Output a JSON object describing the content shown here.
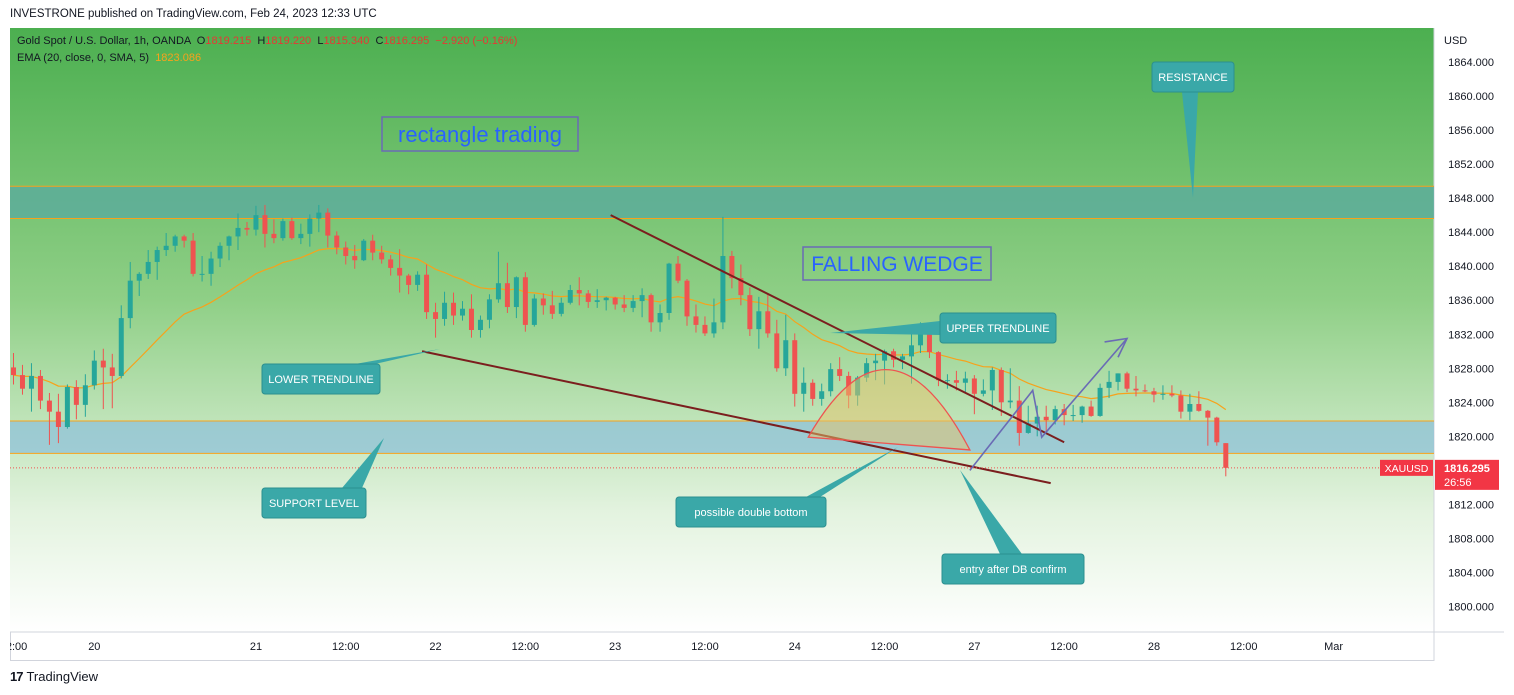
{
  "header": {
    "published_line": "INVESTRONE published on TradingView.com, Feb 24, 2023 12:33 UTC"
  },
  "footer": {
    "logo_text": "TradingView"
  },
  "legend": {
    "symbol_line": "Gold Spot / U.S. Dollar, 1h, OANDA",
    "o_label": "O",
    "o_value": "1819.215",
    "h_label": "H",
    "h_value": "1819.220",
    "l_label": "L",
    "l_value": "1815.340",
    "c_label": "C",
    "c_value": "1816.295",
    "change": "−2.920 (−0.16%)",
    "ema_label": "EMA (20, close, 0, SMA, 5)",
    "ema_value": "1823.086"
  },
  "colors": {
    "up": "#26a69a",
    "down": "#ef5350",
    "ema": "#f7a21b",
    "trendline": "#7b1e1e",
    "callout": "#3aa8a8",
    "price_tag": "#f23645"
  },
  "chart_data": {
    "type": "candlestick",
    "title": "Gold Spot / U.S. Dollar, 1h, OANDA",
    "currency": "USD",
    "ylim": [
      1797.0,
      1868.0
    ],
    "y_ticks": [
      1800,
      1804,
      1808,
      1812,
      1816,
      1820,
      1824,
      1828,
      1832,
      1836,
      1840,
      1844,
      1848,
      1852,
      1856,
      1860,
      1864
    ],
    "y_tick_labels": [
      "1800.000",
      "1804.000",
      "1808.000",
      "1812.000",
      "1816.000",
      "1820.000",
      "1824.000",
      "1828.000",
      "1832.000",
      "1836.000",
      "1840.000",
      "1844.000",
      "1848.000",
      "1852.000",
      "1856.000",
      "1860.000",
      "1864.000"
    ],
    "x_ticks": [
      "12:00",
      "20",
      "21",
      "12:00",
      "22",
      "12:00",
      "23",
      "12:00",
      "24",
      "12:00",
      "27",
      "12:00",
      "28",
      "12:00",
      "Mar"
    ],
    "x_tick_bar": [
      0,
      9,
      27,
      37,
      47,
      57,
      67,
      77,
      87,
      97,
      107,
      117,
      127,
      137,
      147
    ],
    "current_price": 1816.295,
    "price_tag_label": "XAUUSD",
    "price_tag_value": "1816.295",
    "countdown": "26:56",
    "ema_period": 20,
    "candles": [
      [
        1828.1,
        1829.8,
        1826.1,
        1827.2
      ],
      [
        1827.2,
        1828.4,
        1824.9,
        1825.6
      ],
      [
        1825.6,
        1828.6,
        1822.9,
        1827.1
      ],
      [
        1827.1,
        1827.8,
        1823.2,
        1824.2
      ],
      [
        1824.2,
        1825.1,
        1819.0,
        1822.9
      ],
      [
        1822.9,
        1825.0,
        1819.2,
        1821.1
      ],
      [
        1821.1,
        1826.1,
        1820.9,
        1825.8
      ],
      [
        1825.8,
        1826.6,
        1822.0,
        1823.7
      ],
      [
        1823.7,
        1827.3,
        1822.3,
        1826.0
      ],
      [
        1826.0,
        1830.1,
        1825.5,
        1828.9
      ],
      [
        1828.9,
        1830.3,
        1823.2,
        1828.1
      ],
      [
        1828.1,
        1829.7,
        1823.3,
        1827.1
      ],
      [
        1827.1,
        1835.4,
        1826.8,
        1833.9
      ],
      [
        1833.9,
        1840.5,
        1832.7,
        1838.3
      ],
      [
        1838.3,
        1839.3,
        1836.5,
        1839.1
      ],
      [
        1839.1,
        1841.9,
        1838.5,
        1840.5
      ],
      [
        1840.5,
        1842.3,
        1838.4,
        1841.9
      ],
      [
        1841.9,
        1843.9,
        1841.2,
        1842.4
      ],
      [
        1842.4,
        1843.7,
        1841.7,
        1843.5
      ],
      [
        1843.5,
        1843.7,
        1842.2,
        1843.0
      ],
      [
        1843.0,
        1843.9,
        1838.8,
        1839.1
      ],
      [
        1839.1,
        1841.2,
        1838.2,
        1839.1
      ],
      [
        1839.1,
        1841.7,
        1837.7,
        1840.9
      ],
      [
        1840.9,
        1842.8,
        1839.9,
        1842.4
      ],
      [
        1842.4,
        1843.6,
        1840.7,
        1843.5
      ],
      [
        1843.5,
        1846.2,
        1841.9,
        1844.5
      ],
      [
        1844.5,
        1845.2,
        1843.6,
        1844.3
      ],
      [
        1844.3,
        1847.1,
        1843.6,
        1846.0
      ],
      [
        1846.0,
        1847.2,
        1842.2,
        1843.8
      ],
      [
        1843.8,
        1845.5,
        1842.7,
        1843.3
      ],
      [
        1843.3,
        1845.6,
        1843.0,
        1845.3
      ],
      [
        1845.3,
        1845.7,
        1843.1,
        1843.3
      ],
      [
        1843.3,
        1845.0,
        1842.6,
        1843.8
      ],
      [
        1843.8,
        1846.1,
        1842.3,
        1845.6
      ],
      [
        1845.6,
        1847.2,
        1844.0,
        1846.3
      ],
      [
        1846.3,
        1846.8,
        1842.2,
        1843.6
      ],
      [
        1843.6,
        1844.1,
        1841.4,
        1842.2
      ],
      [
        1842.2,
        1842.9,
        1840.2,
        1841.2
      ],
      [
        1841.2,
        1842.5,
        1839.7,
        1840.7
      ],
      [
        1840.7,
        1843.2,
        1840.6,
        1843.0
      ],
      [
        1843.0,
        1843.7,
        1840.7,
        1841.6
      ],
      [
        1841.6,
        1842.4,
        1840.3,
        1840.8
      ],
      [
        1840.8,
        1841.3,
        1838.9,
        1839.8
      ],
      [
        1839.8,
        1842.0,
        1836.9,
        1838.9
      ],
      [
        1838.9,
        1839.1,
        1836.7,
        1837.8
      ],
      [
        1837.8,
        1839.4,
        1837.1,
        1839.0
      ],
      [
        1839.0,
        1840.2,
        1833.8,
        1834.6
      ],
      [
        1834.6,
        1835.7,
        1831.6,
        1833.8
      ],
      [
        1833.8,
        1837.0,
        1833.0,
        1835.7
      ],
      [
        1835.7,
        1836.9,
        1833.1,
        1834.2
      ],
      [
        1834.2,
        1835.9,
        1833.6,
        1835.0
      ],
      [
        1835.0,
        1836.7,
        1831.6,
        1832.5
      ],
      [
        1832.5,
        1834.2,
        1831.6,
        1833.7
      ],
      [
        1833.7,
        1836.7,
        1832.7,
        1836.1
      ],
      [
        1836.1,
        1841.7,
        1835.7,
        1838.0
      ],
      [
        1838.0,
        1840.4,
        1834.5,
        1835.2
      ],
      [
        1835.2,
        1838.8,
        1833.9,
        1838.7
      ],
      [
        1838.7,
        1839.3,
        1832.3,
        1833.1
      ],
      [
        1833.1,
        1836.7,
        1832.9,
        1836.2
      ],
      [
        1836.2,
        1836.8,
        1834.3,
        1835.4
      ],
      [
        1835.4,
        1837.1,
        1833.8,
        1834.4
      ],
      [
        1834.4,
        1836.3,
        1834.1,
        1835.7
      ],
      [
        1835.7,
        1837.8,
        1835.5,
        1837.2
      ],
      [
        1837.2,
        1838.7,
        1835.4,
        1836.8
      ],
      [
        1836.8,
        1837.2,
        1835.1,
        1835.8
      ],
      [
        1835.8,
        1837.3,
        1835.1,
        1836.0
      ],
      [
        1836.0,
        1836.4,
        1834.8,
        1836.3
      ],
      [
        1836.3,
        1836.4,
        1834.9,
        1835.5
      ],
      [
        1835.5,
        1836.6,
        1834.6,
        1835.1
      ],
      [
        1835.1,
        1836.6,
        1834.6,
        1835.9
      ],
      [
        1835.9,
        1837.4,
        1834.0,
        1836.6
      ],
      [
        1836.6,
        1836.8,
        1832.3,
        1833.4
      ],
      [
        1833.4,
        1835.5,
        1832.3,
        1834.5
      ],
      [
        1834.5,
        1840.4,
        1833.7,
        1840.3
      ],
      [
        1840.3,
        1841.2,
        1838.0,
        1838.3
      ],
      [
        1838.3,
        1838.5,
        1833.0,
        1834.1
      ],
      [
        1834.1,
        1835.5,
        1832.2,
        1833.1
      ],
      [
        1833.1,
        1834.1,
        1831.8,
        1832.1
      ],
      [
        1832.1,
        1836.2,
        1831.6,
        1833.4
      ],
      [
        1833.4,
        1845.8,
        1832.6,
        1841.2
      ],
      [
        1841.2,
        1841.8,
        1837.4,
        1838.6
      ],
      [
        1838.6,
        1840.2,
        1835.4,
        1836.6
      ],
      [
        1836.6,
        1837.5,
        1831.8,
        1832.6
      ],
      [
        1832.6,
        1836.4,
        1830.3,
        1834.7
      ],
      [
        1834.7,
        1836.7,
        1831.6,
        1832.1
      ],
      [
        1832.1,
        1833.7,
        1827.6,
        1828.0
      ],
      [
        1828.0,
        1834.3,
        1827.1,
        1831.3
      ],
      [
        1831.3,
        1832.1,
        1823.5,
        1825.0
      ],
      [
        1825.0,
        1828.1,
        1822.9,
        1826.3
      ],
      [
        1826.3,
        1826.7,
        1823.6,
        1824.4
      ],
      [
        1824.4,
        1826.2,
        1823.6,
        1825.3
      ],
      [
        1825.3,
        1828.6,
        1824.7,
        1827.9
      ],
      [
        1827.9,
        1829.3,
        1826.5,
        1827.1
      ],
      [
        1827.1,
        1827.6,
        1823.3,
        1824.8
      ],
      [
        1824.8,
        1827.1,
        1823.6,
        1826.9
      ],
      [
        1826.9,
        1829.2,
        1826.4,
        1828.6
      ],
      [
        1828.6,
        1829.7,
        1826.6,
        1828.9
      ],
      [
        1828.9,
        1830.2,
        1826.1,
        1830.0
      ],
      [
        1830.0,
        1830.3,
        1828.1,
        1829.0
      ],
      [
        1829.0,
        1829.7,
        1827.9,
        1829.4
      ],
      [
        1829.4,
        1832.0,
        1826.2,
        1830.7
      ],
      [
        1830.7,
        1833.4,
        1829.8,
        1832.7
      ],
      [
        1832.7,
        1832.9,
        1829.2,
        1829.9
      ],
      [
        1829.9,
        1830.0,
        1825.9,
        1826.6
      ],
      [
        1826.6,
        1827.3,
        1825.6,
        1826.6
      ],
      [
        1826.6,
        1827.7,
        1825.4,
        1826.3
      ],
      [
        1826.3,
        1827.6,
        1825.1,
        1826.8
      ],
      [
        1826.8,
        1827.2,
        1822.6,
        1825.0
      ],
      [
        1825.0,
        1826.7,
        1824.7,
        1825.4
      ],
      [
        1825.4,
        1828.1,
        1823.1,
        1827.8
      ],
      [
        1827.8,
        1828.1,
        1822.4,
        1824.0
      ],
      [
        1824.0,
        1828.0,
        1823.3,
        1824.2
      ],
      [
        1824.2,
        1825.9,
        1818.9,
        1820.4
      ],
      [
        1820.4,
        1823.6,
        1820.3,
        1821.5
      ],
      [
        1821.5,
        1823.6,
        1820.0,
        1822.3
      ],
      [
        1822.3,
        1823.6,
        1820.3,
        1821.9
      ],
      [
        1821.9,
        1823.6,
        1821.4,
        1823.2
      ],
      [
        1823.2,
        1823.8,
        1821.3,
        1822.5
      ],
      [
        1822.5,
        1823.7,
        1821.8,
        1822.5
      ],
      [
        1822.5,
        1823.6,
        1821.6,
        1823.5
      ],
      [
        1823.5,
        1824.2,
        1822.3,
        1822.4
      ],
      [
        1822.4,
        1826.2,
        1822.3,
        1825.7
      ],
      [
        1825.7,
        1827.7,
        1824.5,
        1826.4
      ],
      [
        1826.4,
        1827.4,
        1825.4,
        1827.4
      ],
      [
        1827.4,
        1827.6,
        1825.2,
        1825.6
      ],
      [
        1825.6,
        1827.1,
        1824.7,
        1825.4
      ],
      [
        1825.4,
        1826.1,
        1825.2,
        1825.3
      ],
      [
        1825.3,
        1825.7,
        1824.0,
        1824.9
      ],
      [
        1824.9,
        1826.0,
        1824.3,
        1825.0
      ],
      [
        1825.0,
        1826.0,
        1824.6,
        1824.8
      ],
      [
        1824.8,
        1825.4,
        1822.1,
        1822.9
      ],
      [
        1822.9,
        1825.0,
        1821.9,
        1823.8
      ],
      [
        1823.8,
        1825.3,
        1822.9,
        1823.0
      ],
      [
        1823.0,
        1823.1,
        1818.9,
        1822.2
      ],
      [
        1822.2,
        1822.3,
        1818.9,
        1819.3
      ],
      [
        1819.2,
        1819.2,
        1815.3,
        1816.3
      ]
    ]
  },
  "annotations": {
    "rectangle_trading": "rectangle trading",
    "falling_wedge": "FALLING WEDGE",
    "resistance": "RESISTANCE",
    "upper_trendline": "UPPER TRENDLINE",
    "lower_trendline": "LOWER TRENDLINE",
    "support_level": "SUPPORT LEVEL",
    "possible_double_bottom": "possible double bottom",
    "entry_after_db": "entry after DB confirm"
  }
}
